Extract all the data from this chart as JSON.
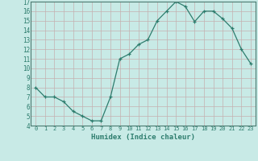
{
  "x": [
    0,
    1,
    2,
    3,
    4,
    5,
    6,
    7,
    8,
    9,
    10,
    11,
    12,
    13,
    14,
    15,
    16,
    17,
    18,
    19,
    20,
    21,
    22,
    23
  ],
  "y": [
    8.0,
    7.0,
    7.0,
    6.5,
    5.5,
    5.0,
    4.5,
    4.5,
    7.0,
    11.0,
    11.5,
    12.5,
    13.0,
    15.0,
    16.0,
    17.0,
    16.5,
    14.9,
    16.0,
    16.0,
    15.2,
    14.2,
    12.0,
    10.5
  ],
  "xlabel": "Humidex (Indice chaleur)",
  "ylim": [
    4,
    17
  ],
  "xlim": [
    -0.5,
    23.5
  ],
  "yticks": [
    4,
    5,
    6,
    7,
    8,
    9,
    10,
    11,
    12,
    13,
    14,
    15,
    16,
    17
  ],
  "xticks": [
    0,
    1,
    2,
    3,
    4,
    5,
    6,
    7,
    8,
    9,
    10,
    11,
    12,
    13,
    14,
    15,
    16,
    17,
    18,
    19,
    20,
    21,
    22,
    23
  ],
  "line_color": "#2e7d6e",
  "marker_color": "#2e7d6e",
  "bg_color": "#c8eae6",
  "grid_color": "#c4b0b0",
  "xlabel_color": "#2e7d6e",
  "tick_color": "#2e7d6e",
  "spine_color": "#4a7a70"
}
